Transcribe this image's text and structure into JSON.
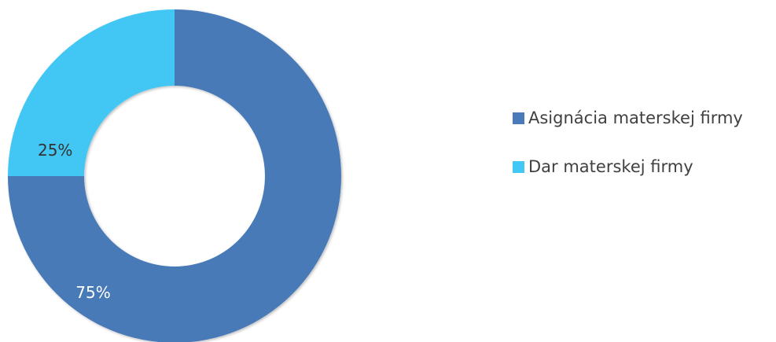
{
  "chart_data": {
    "type": "pie",
    "donut": true,
    "categories": [
      "Asignácia materskej firmy",
      "Dar materskej firmy"
    ],
    "values": [
      75,
      25
    ],
    "data_labels": [
      "75%",
      "25%"
    ],
    "colors": [
      "#4a7ab8",
      "#43c7f4"
    ],
    "label_colors": [
      "#ffffff",
      "#333333"
    ],
    "legend_position": "right",
    "start_angle_deg": 0,
    "direction": "clockwise"
  }
}
